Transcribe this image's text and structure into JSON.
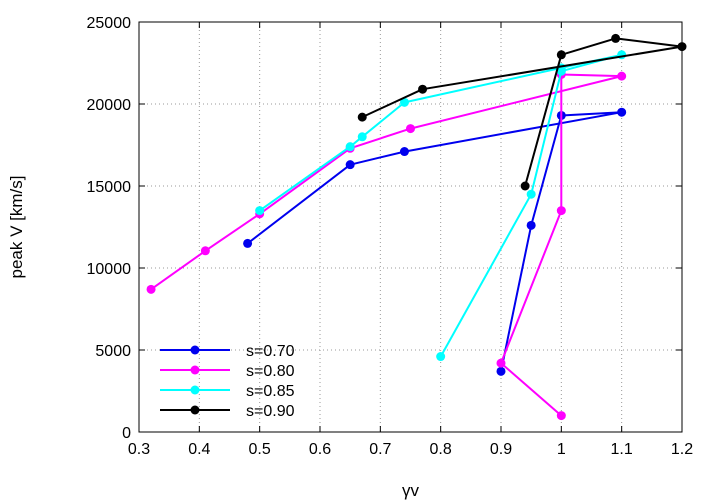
{
  "chart_data": {
    "type": "line",
    "title": "",
    "xlabel": "γv",
    "ylabel": "peak V [km/s]",
    "xlim": [
      0.3,
      1.2
    ],
    "ylim": [
      0,
      25000
    ],
    "xticks": [
      "0.3",
      "0.4",
      "0.5",
      "0.6",
      "0.7",
      "0.8",
      "0.9",
      "1",
      "1.1",
      "1.2"
    ],
    "yticks": [
      "0",
      "5000",
      "10000",
      "15000",
      "20000",
      "25000"
    ],
    "grid": true,
    "legend_position": "bottom-left",
    "series": [
      {
        "name": "s=0.70",
        "color": "#0000ee",
        "points": [
          [
            0.48,
            11500
          ],
          [
            0.65,
            16300
          ],
          [
            0.74,
            17100
          ],
          [
            1.1,
            19500
          ],
          [
            1.0,
            19300
          ],
          [
            0.95,
            12600
          ],
          [
            0.9,
            3700
          ]
        ]
      },
      {
        "name": "s=0.80",
        "color": "#ff00ff",
        "points": [
          [
            0.32,
            8700
          ],
          [
            0.41,
            11050
          ],
          [
            0.5,
            13300
          ],
          [
            0.65,
            17300
          ],
          [
            0.75,
            18500
          ],
          [
            1.1,
            21700
          ],
          [
            1.0,
            21800
          ],
          [
            1.0,
            13500
          ],
          [
            0.9,
            4200
          ],
          [
            1.0,
            1000
          ]
        ]
      },
      {
        "name": "s=0.85",
        "color": "#00ffff",
        "points": [
          [
            0.5,
            13500
          ],
          [
            0.65,
            17400
          ],
          [
            0.67,
            18000
          ],
          [
            0.74,
            20100
          ],
          [
            1.0,
            22200
          ],
          [
            1.1,
            23000
          ],
          [
            1.0,
            22000
          ],
          [
            0.95,
            14500
          ],
          [
            0.8,
            4600
          ]
        ]
      },
      {
        "name": "s=0.90",
        "color": "#000000",
        "points": [
          [
            0.67,
            19200
          ],
          [
            0.77,
            20900
          ],
          [
            1.2,
            23500
          ],
          [
            1.09,
            24000
          ],
          [
            1.0,
            23000
          ],
          [
            0.94,
            15000
          ]
        ]
      }
    ]
  }
}
